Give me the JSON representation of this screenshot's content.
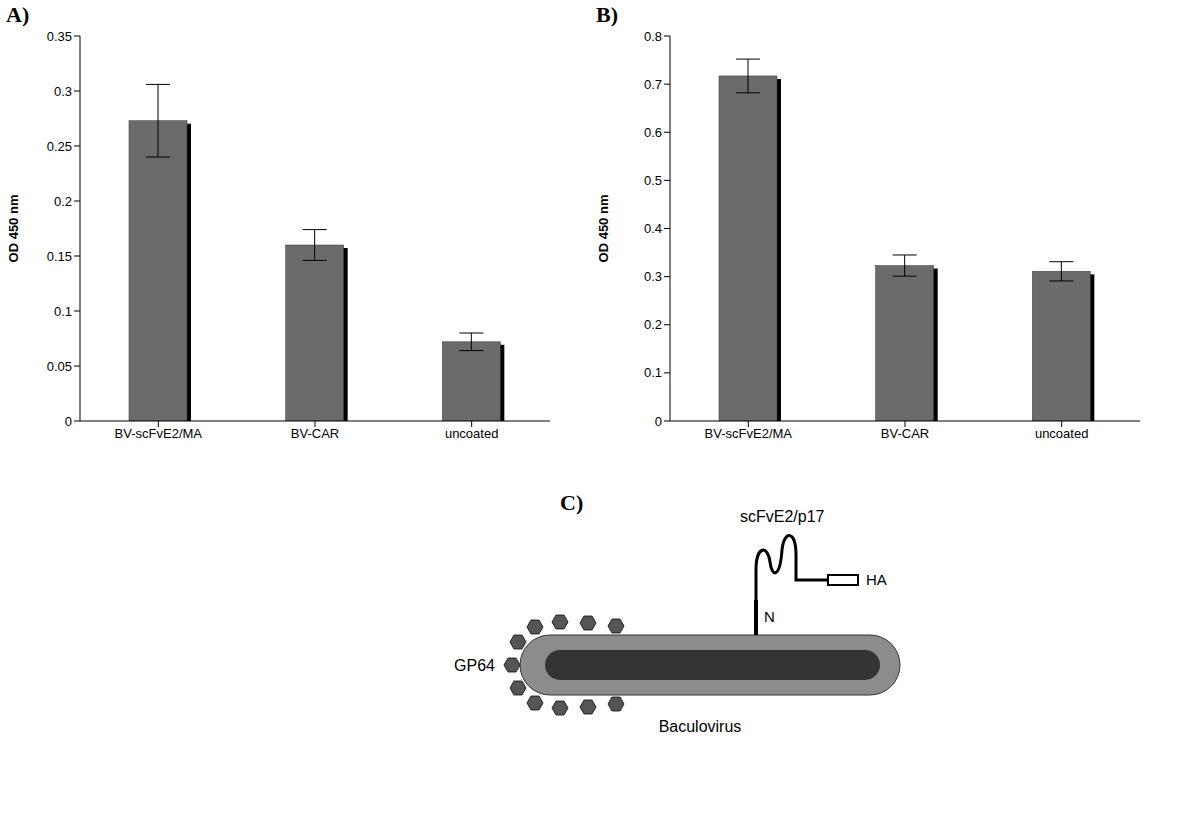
{
  "chart_data": [
    {
      "panel_label": "A)",
      "type": "bar",
      "categories": [
        "BV-scFvE2/MA",
        "BV-CAR",
        "uncoated"
      ],
      "values": [
        0.273,
        0.16,
        0.072
      ],
      "errors": [
        0.033,
        0.014,
        0.008
      ],
      "color": "#6b6b6b",
      "ylabel": "OD 450 nm",
      "ylim": [
        0,
        0.35
      ],
      "yticks": [
        0,
        0.05,
        0.1,
        0.15,
        0.2,
        0.25,
        0.3,
        0.35
      ],
      "grid": false
    },
    {
      "panel_label": "B)",
      "type": "bar",
      "categories": [
        "BV-scFvE2/MA",
        "BV-CAR",
        "uncoated"
      ],
      "values": [
        0.717,
        0.323,
        0.311
      ],
      "errors": [
        0.035,
        0.022,
        0.02
      ],
      "color": "#6b6b6b",
      "ylabel": "OD 450 nm",
      "ylim": [
        0,
        0.8
      ],
      "yticks": [
        0,
        0.1,
        0.2,
        0.3,
        0.4,
        0.5,
        0.6,
        0.7,
        0.8
      ],
      "grid": false
    }
  ],
  "diagram": {
    "panel_label": "C)",
    "labels": {
      "scfv": "scFvE2/p17",
      "tag": "HA",
      "terminus": "N",
      "envelope": "GP64",
      "virus": "Baculovirus"
    }
  }
}
